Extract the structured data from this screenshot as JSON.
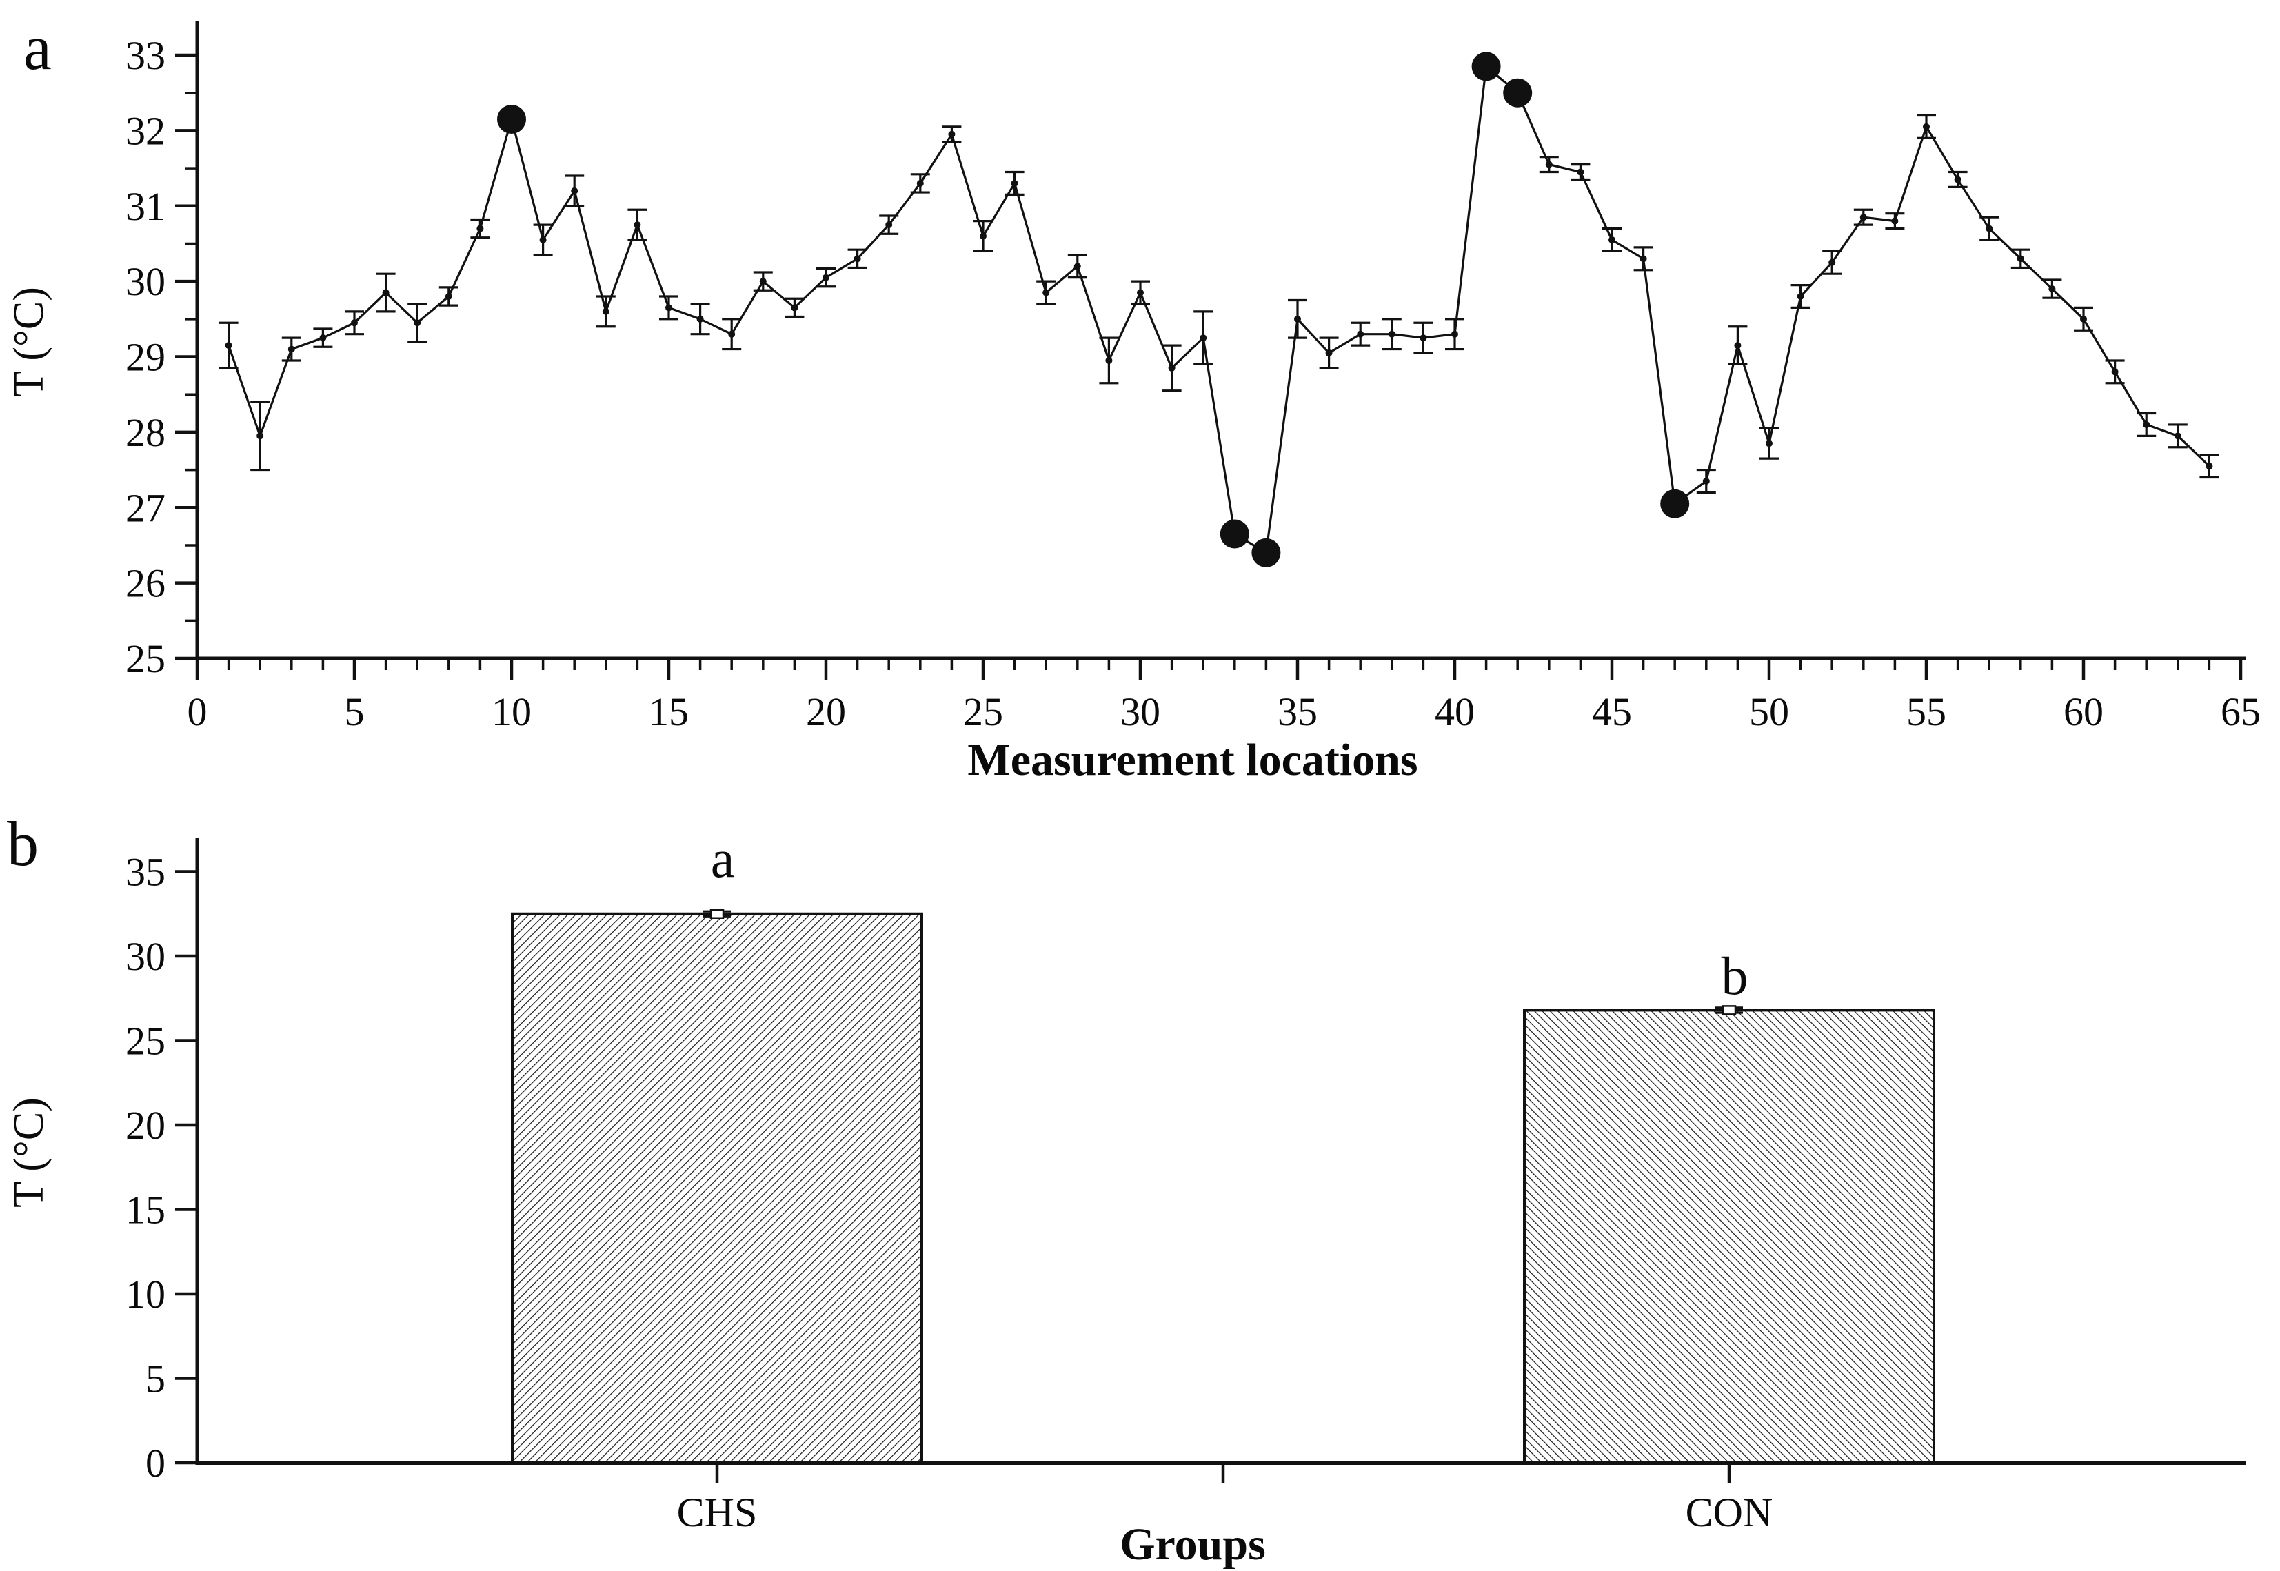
{
  "figure": {
    "background": "#ffffff",
    "ink_color": "#111111",
    "panel_a_label": "a",
    "panel_b_label": "b"
  },
  "chart_data": [
    {
      "type": "line",
      "panel_label": "a",
      "title": "",
      "xlabel": "Measurement locations",
      "ylabel": "T (°C)",
      "xlim": [
        0,
        65
      ],
      "ylim": [
        25,
        33.5
      ],
      "grid": false,
      "legend": "none",
      "xtick_labels": [
        0,
        5,
        10,
        15,
        20,
        25,
        30,
        35,
        40,
        45,
        50,
        55,
        60,
        65
      ],
      "ytick_labels": [
        25,
        26,
        27,
        28,
        29,
        30,
        31,
        32,
        33
      ],
      "x": [
        1,
        2,
        3,
        4,
        5,
        6,
        7,
        8,
        9,
        10,
        11,
        12,
        13,
        14,
        15,
        16,
        17,
        18,
        19,
        20,
        21,
        22,
        23,
        24,
        25,
        26,
        27,
        28,
        29,
        30,
        31,
        32,
        33,
        34,
        35,
        36,
        37,
        38,
        39,
        40,
        41,
        42,
        43,
        44,
        45,
        46,
        47,
        48,
        49,
        50,
        51,
        52,
        53,
        54,
        55,
        56,
        57,
        58,
        59,
        60,
        61,
        62,
        63,
        64
      ],
      "values": [
        29.15,
        27.95,
        29.1,
        29.25,
        29.45,
        29.85,
        29.45,
        29.8,
        30.7,
        32.15,
        30.55,
        31.2,
        29.6,
        30.75,
        29.65,
        29.5,
        29.3,
        30.0,
        29.65,
        30.05,
        30.3,
        30.75,
        31.3,
        31.95,
        30.6,
        31.3,
        29.85,
        30.2,
        28.95,
        29.85,
        28.85,
        29.25,
        26.65,
        26.4,
        29.5,
        29.05,
        29.3,
        29.3,
        29.25,
        29.3,
        32.85,
        32.5,
        31.55,
        31.45,
        30.55,
        30.3,
        27.05,
        27.35,
        29.15,
        27.85,
        29.8,
        30.25,
        30.85,
        30.8,
        32.05,
        31.35,
        30.7,
        30.3,
        29.9,
        29.5,
        28.8,
        28.1,
        27.95,
        27.55
      ],
      "errors": [
        0.3,
        0.45,
        0.15,
        0.12,
        0.15,
        0.25,
        0.25,
        0.12,
        0.12,
        0.1,
        0.2,
        0.2,
        0.2,
        0.2,
        0.15,
        0.2,
        0.2,
        0.12,
        0.12,
        0.12,
        0.12,
        0.12,
        0.12,
        0.1,
        0.2,
        0.15,
        0.15,
        0.15,
        0.3,
        0.15,
        0.3,
        0.35,
        0.05,
        0.05,
        0.25,
        0.2,
        0.15,
        0.2,
        0.2,
        0.2,
        0.05,
        0.05,
        0.1,
        0.1,
        0.15,
        0.15,
        0.05,
        0.15,
        0.25,
        0.2,
        0.15,
        0.15,
        0.1,
        0.1,
        0.15,
        0.1,
        0.15,
        0.12,
        0.12,
        0.15,
        0.15,
        0.15,
        0.15,
        0.15
      ],
      "highlighted_points_x": [
        10,
        33,
        34,
        41,
        42,
        47
      ],
      "marker_style": "dot-with-error-bars",
      "highlight_style": "large-filled-circle",
      "line_color": "#111111"
    },
    {
      "type": "bar",
      "panel_label": "b",
      "title": "",
      "xlabel": "Groups",
      "ylabel": "T (°C)",
      "ylim": [
        0,
        37.5
      ],
      "grid": false,
      "legend": "none",
      "categories": [
        "CHS",
        "CON"
      ],
      "values": [
        32.5,
        26.8
      ],
      "errors": [
        0.15,
        0.15
      ],
      "sig_letters": [
        "a",
        "b"
      ],
      "hatch": [
        "/",
        "\\"
      ],
      "ytick_labels": [
        0,
        5,
        10,
        15,
        20,
        25,
        30,
        35
      ],
      "bar_fill": "#ffffff",
      "bar_edge_color": "#111111"
    }
  ]
}
